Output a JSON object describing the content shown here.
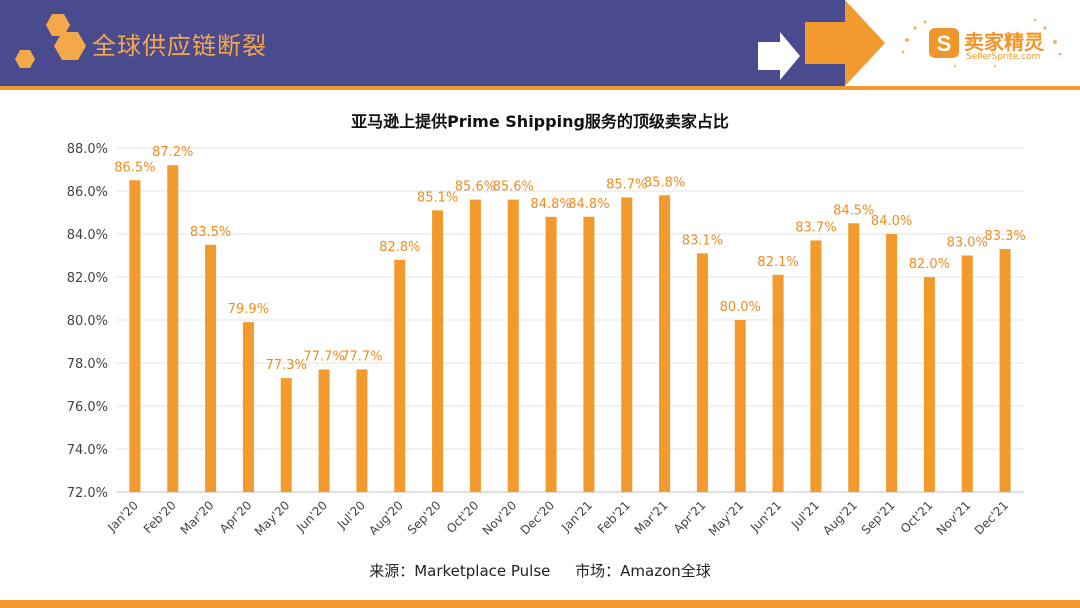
{
  "header": {
    "title": "全球供应链断裂",
    "brand_name": "卖家精灵",
    "brand_url": "SellerSprite.com",
    "band_color": "#4a4a8f",
    "accent_color": "#f39a2e"
  },
  "chart_data": {
    "type": "bar",
    "title": "亚马逊上提供Prime Shipping服务的顶级卖家占比",
    "categories": [
      "Jan'20",
      "Feb'20",
      "Mar'20",
      "Apr'20",
      "May'20",
      "Jun'20",
      "Jul'20",
      "Aug'20",
      "Sep'20",
      "Oct'20",
      "Nov'20",
      "Dec'20",
      "Jan'21",
      "Feb'21",
      "Mar'21",
      "Apr'21",
      "May'21",
      "Jun'21",
      "Jul'21",
      "Aug'21",
      "Sep'21",
      "Oct'21",
      "Nov'21",
      "Dec'21"
    ],
    "values": [
      86.5,
      87.2,
      83.5,
      79.9,
      77.3,
      77.7,
      77.7,
      82.8,
      85.1,
      85.6,
      85.6,
      84.8,
      84.8,
      85.7,
      85.8,
      83.1,
      80.0,
      82.1,
      83.7,
      84.5,
      84.0,
      82.0,
      83.0,
      83.3
    ],
    "value_labels": [
      "86.5%",
      "87.2%",
      "83.5%",
      "79.9%",
      "77.3%",
      "77.7%",
      "77.7%",
      "82.8%",
      "85.1%",
      "85.6%",
      "85.6%",
      "84.8%",
      "84.8%",
      "85.7%",
      "85.8%",
      "83.1%",
      "80.0%",
      "82.1%",
      "83.7%",
      "84.5%",
      "84.0%",
      "82.0%",
      "83.0%",
      "83.3%"
    ],
    "y_ticks": [
      "72.0%",
      "74.0%",
      "76.0%",
      "78.0%",
      "80.0%",
      "82.0%",
      "84.0%",
      "86.0%",
      "88.0%"
    ],
    "ylim": [
      72,
      88
    ],
    "ystep": 2,
    "grid": true,
    "bar_color": "#f39a2e",
    "label_color": "#f08c1e"
  },
  "source": {
    "origin": "来源：Marketplace Pulse",
    "market": "市场：Amazon全球"
  }
}
